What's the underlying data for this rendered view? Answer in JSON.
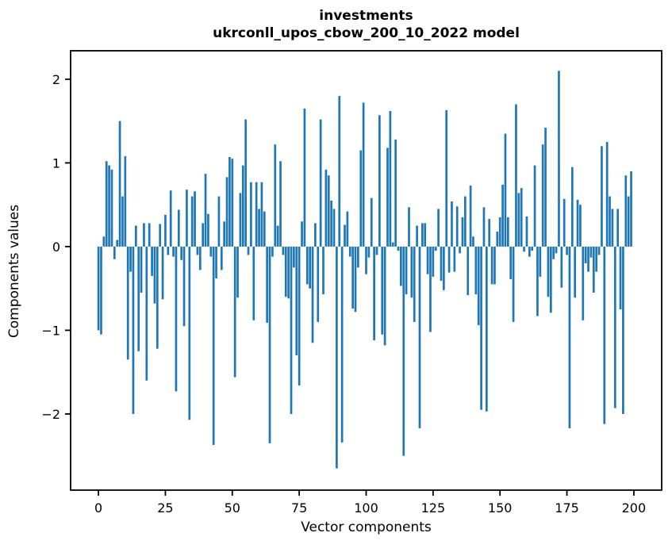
{
  "chart_data": {
    "type": "bar",
    "title": "investments",
    "subtitle": "ukrconll_upos_cbow_200_10_2022 model",
    "xlabel": "Vector components",
    "ylabel": "Components values",
    "bar_color": "#1f77b4",
    "x_start": 0,
    "values": [
      -1.0,
      -1.05,
      0.12,
      1.02,
      0.97,
      0.92,
      -0.15,
      0.08,
      1.5,
      0.6,
      1.08,
      -1.35,
      -0.3,
      -2.0,
      0.25,
      -1.25,
      -0.55,
      0.28,
      -1.6,
      0.28,
      -0.35,
      -0.68,
      -1.22,
      0.27,
      -0.63,
      0.38,
      -0.1,
      0.67,
      -0.12,
      -1.73,
      0.44,
      -0.16,
      -0.95,
      0.68,
      -2.07,
      0.6,
      0.66,
      -0.1,
      -0.28,
      0.28,
      0.87,
      0.39,
      -0.12,
      -2.37,
      -0.38,
      0.6,
      -0.28,
      0.3,
      0.83,
      1.07,
      1.05,
      -1.56,
      -0.61,
      0.64,
      0.97,
      1.52,
      -0.1,
      0.77,
      -0.88,
      0.77,
      0.45,
      0.77,
      0.42,
      -0.91,
      -2.35,
      -0.12,
      1.22,
      0.25,
      1.02,
      -0.1,
      -0.6,
      -0.62,
      -2.0,
      -0.25,
      -1.3,
      -1.66,
      0.3,
      1.65,
      -0.45,
      -0.5,
      -1.15,
      0.28,
      -0.9,
      1.52,
      -0.57,
      0.92,
      0.85,
      0.55,
      0.45,
      -2.65,
      1.8,
      -2.34,
      0.26,
      0.42,
      -0.12,
      -0.74,
      -0.78,
      -0.25,
      1.15,
      1.72,
      -0.33,
      -0.13,
      0.58,
      -1.12,
      -0.1,
      1.57,
      -1.05,
      -1.18,
      1.18,
      1.62,
      0.05,
      1.28,
      -0.05,
      -0.47,
      -2.5,
      -0.57,
      0.47,
      -0.61,
      -0.9,
      0.25,
      -2.17,
      0.28,
      0.28,
      -0.33,
      -1.02,
      -0.36,
      -0.05,
      0.45,
      -0.41,
      -0.52,
      1.63,
      -0.31,
      0.54,
      -0.3,
      0.48,
      -0.08,
      0.35,
      0.6,
      -0.58,
      0.73,
      0.12,
      -0.57,
      -0.94,
      -1.95,
      0.47,
      -1.97,
      0.33,
      -0.45,
      -0.45,
      0.18,
      0.35,
      0.74,
      1.35,
      0.35,
      -0.39,
      -0.9,
      1.7,
      0.64,
      0.7,
      -0.06,
      0.36,
      -0.12,
      -0.05,
      0.97,
      -0.83,
      -0.36,
      1.22,
      1.42,
      -0.6,
      -0.79,
      -0.15,
      -0.08,
      2.1,
      -0.49,
      0.57,
      -0.1,
      -2.17,
      0.95,
      -0.61,
      0.56,
      0.5,
      -0.88,
      -0.2,
      -0.3,
      -0.13,
      -0.55,
      -0.3,
      -0.1,
      1.2,
      -2.12,
      1.25,
      0.6,
      0.45,
      -1.93,
      0.45,
      -0.75,
      -2.0,
      0.85,
      0.6,
      0.9
    ],
    "xlim": [
      -10.4,
      210.4
    ],
    "ylim": [
      -2.91,
      2.34
    ],
    "xticks": [
      0,
      25,
      50,
      75,
      100,
      125,
      150,
      175,
      200
    ],
    "yticks": [
      -2,
      -1,
      0,
      1,
      2
    ],
    "grid": false,
    "legend": null,
    "axis_color": "#000000"
  }
}
